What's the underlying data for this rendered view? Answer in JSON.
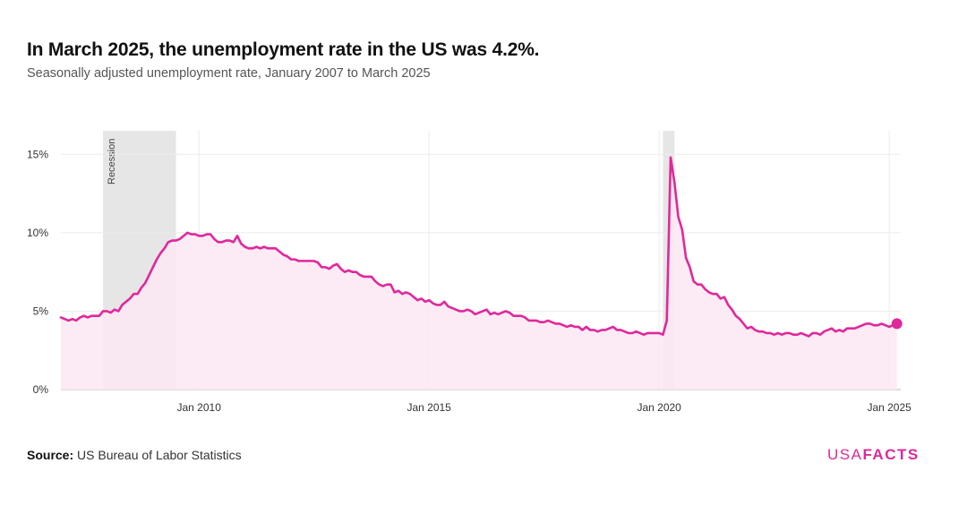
{
  "header": {
    "title": "In March 2025, the unemployment rate in the US was 4.2%.",
    "subtitle": "Seasonally adjusted unemployment rate, January 2007 to March 2025"
  },
  "footer": {
    "source_label": "Source:",
    "source_text": "US Bureau of Labor Statistics",
    "logo_light": "USA",
    "logo_bold": "FACTS"
  },
  "colors": {
    "line": "#e0289b",
    "area": "#fbe8f3",
    "band": "#e6e6e6",
    "grid": "#ebebeb"
  },
  "chart_data": {
    "type": "area",
    "title": "In March 2025, the unemployment rate in the US was 4.2%.",
    "ylabel": "",
    "xlabel": "",
    "ylim": [
      0,
      16.5
    ],
    "y_ticks": [
      0,
      5,
      10,
      15
    ],
    "y_tick_labels": [
      "0%",
      "5%",
      "10%",
      "15%"
    ],
    "x_ticks": [
      "2010-01",
      "2015-01",
      "2020-01",
      "2025-01"
    ],
    "x_tick_labels": [
      "Jan 2010",
      "Jan 2015",
      "Jan 2020",
      "Jan 2025"
    ],
    "grid": true,
    "recessions": [
      {
        "start": "2007-12",
        "end": "2009-06",
        "label": "Recession"
      },
      {
        "start": "2020-02",
        "end": "2020-04",
        "label": ""
      }
    ],
    "series": [
      {
        "units": "percent",
        "points": [
          [
            "2007-01",
            4.6
          ],
          [
            "2007-02",
            4.5
          ],
          [
            "2007-03",
            4.4
          ],
          [
            "2007-04",
            4.5
          ],
          [
            "2007-05",
            4.4
          ],
          [
            "2007-06",
            4.6
          ],
          [
            "2007-07",
            4.7
          ],
          [
            "2007-08",
            4.6
          ],
          [
            "2007-09",
            4.7
          ],
          [
            "2007-10",
            4.7
          ],
          [
            "2007-11",
            4.7
          ],
          [
            "2007-12",
            5.0
          ],
          [
            "2008-01",
            5.0
          ],
          [
            "2008-02",
            4.9
          ],
          [
            "2008-03",
            5.1
          ],
          [
            "2008-04",
            5.0
          ],
          [
            "2008-05",
            5.4
          ],
          [
            "2008-06",
            5.6
          ],
          [
            "2008-07",
            5.8
          ],
          [
            "2008-08",
            6.1
          ],
          [
            "2008-09",
            6.1
          ],
          [
            "2008-10",
            6.5
          ],
          [
            "2008-11",
            6.8
          ],
          [
            "2008-12",
            7.3
          ],
          [
            "2009-01",
            7.8
          ],
          [
            "2009-02",
            8.3
          ],
          [
            "2009-03",
            8.7
          ],
          [
            "2009-04",
            9.0
          ],
          [
            "2009-05",
            9.4
          ],
          [
            "2009-06",
            9.5
          ],
          [
            "2009-07",
            9.5
          ],
          [
            "2009-08",
            9.6
          ],
          [
            "2009-09",
            9.8
          ],
          [
            "2009-10",
            10.0
          ],
          [
            "2009-11",
            9.9
          ],
          [
            "2009-12",
            9.9
          ],
          [
            "2010-01",
            9.8
          ],
          [
            "2010-02",
            9.8
          ],
          [
            "2010-03",
            9.9
          ],
          [
            "2010-04",
            9.9
          ],
          [
            "2010-05",
            9.6
          ],
          [
            "2010-06",
            9.4
          ],
          [
            "2010-07",
            9.4
          ],
          [
            "2010-08",
            9.5
          ],
          [
            "2010-09",
            9.5
          ],
          [
            "2010-10",
            9.4
          ],
          [
            "2010-11",
            9.8
          ],
          [
            "2010-12",
            9.3
          ],
          [
            "2011-01",
            9.1
          ],
          [
            "2011-02",
            9.0
          ],
          [
            "2011-03",
            9.0
          ],
          [
            "2011-04",
            9.1
          ],
          [
            "2011-05",
            9.0
          ],
          [
            "2011-06",
            9.1
          ],
          [
            "2011-07",
            9.0
          ],
          [
            "2011-08",
            9.0
          ],
          [
            "2011-09",
            9.0
          ],
          [
            "2011-10",
            8.8
          ],
          [
            "2011-11",
            8.6
          ],
          [
            "2011-12",
            8.5
          ],
          [
            "2012-01",
            8.3
          ],
          [
            "2012-02",
            8.3
          ],
          [
            "2012-03",
            8.2
          ],
          [
            "2012-04",
            8.2
          ],
          [
            "2012-05",
            8.2
          ],
          [
            "2012-06",
            8.2
          ],
          [
            "2012-07",
            8.2
          ],
          [
            "2012-08",
            8.1
          ],
          [
            "2012-09",
            7.8
          ],
          [
            "2012-10",
            7.8
          ],
          [
            "2012-11",
            7.7
          ],
          [
            "2012-12",
            7.9
          ],
          [
            "2013-01",
            8.0
          ],
          [
            "2013-02",
            7.7
          ],
          [
            "2013-03",
            7.5
          ],
          [
            "2013-04",
            7.6
          ],
          [
            "2013-05",
            7.5
          ],
          [
            "2013-06",
            7.5
          ],
          [
            "2013-07",
            7.3
          ],
          [
            "2013-08",
            7.2
          ],
          [
            "2013-09",
            7.2
          ],
          [
            "2013-10",
            7.2
          ],
          [
            "2013-11",
            6.9
          ],
          [
            "2013-12",
            6.7
          ],
          [
            "2014-01",
            6.6
          ],
          [
            "2014-02",
            6.7
          ],
          [
            "2014-03",
            6.7
          ],
          [
            "2014-04",
            6.2
          ],
          [
            "2014-05",
            6.3
          ],
          [
            "2014-06",
            6.1
          ],
          [
            "2014-07",
            6.2
          ],
          [
            "2014-08",
            6.1
          ],
          [
            "2014-09",
            5.9
          ],
          [
            "2014-10",
            5.7
          ],
          [
            "2014-11",
            5.8
          ],
          [
            "2014-12",
            5.6
          ],
          [
            "2015-01",
            5.7
          ],
          [
            "2015-02",
            5.5
          ],
          [
            "2015-03",
            5.4
          ],
          [
            "2015-04",
            5.4
          ],
          [
            "2015-05",
            5.6
          ],
          [
            "2015-06",
            5.3
          ],
          [
            "2015-07",
            5.2
          ],
          [
            "2015-08",
            5.1
          ],
          [
            "2015-09",
            5.0
          ],
          [
            "2015-10",
            5.0
          ],
          [
            "2015-11",
            5.1
          ],
          [
            "2015-12",
            5.0
          ],
          [
            "2016-01",
            4.8
          ],
          [
            "2016-02",
            4.9
          ],
          [
            "2016-03",
            5.0
          ],
          [
            "2016-04",
            5.1
          ],
          [
            "2016-05",
            4.8
          ],
          [
            "2016-06",
            4.9
          ],
          [
            "2016-07",
            4.8
          ],
          [
            "2016-08",
            4.9
          ],
          [
            "2016-09",
            5.0
          ],
          [
            "2016-10",
            4.9
          ],
          [
            "2016-11",
            4.7
          ],
          [
            "2016-12",
            4.7
          ],
          [
            "2017-01",
            4.7
          ],
          [
            "2017-02",
            4.6
          ],
          [
            "2017-03",
            4.4
          ],
          [
            "2017-04",
            4.4
          ],
          [
            "2017-05",
            4.4
          ],
          [
            "2017-06",
            4.3
          ],
          [
            "2017-07",
            4.3
          ],
          [
            "2017-08",
            4.4
          ],
          [
            "2017-09",
            4.3
          ],
          [
            "2017-10",
            4.2
          ],
          [
            "2017-11",
            4.2
          ],
          [
            "2017-12",
            4.1
          ],
          [
            "2018-01",
            4.0
          ],
          [
            "2018-02",
            4.1
          ],
          [
            "2018-03",
            4.0
          ],
          [
            "2018-04",
            4.0
          ],
          [
            "2018-05",
            3.8
          ],
          [
            "2018-06",
            4.0
          ],
          [
            "2018-07",
            3.8
          ],
          [
            "2018-08",
            3.8
          ],
          [
            "2018-09",
            3.7
          ],
          [
            "2018-10",
            3.8
          ],
          [
            "2018-11",
            3.8
          ],
          [
            "2018-12",
            3.9
          ],
          [
            "2019-01",
            4.0
          ],
          [
            "2019-02",
            3.8
          ],
          [
            "2019-03",
            3.8
          ],
          [
            "2019-04",
            3.7
          ],
          [
            "2019-05",
            3.6
          ],
          [
            "2019-06",
            3.6
          ],
          [
            "2019-07",
            3.7
          ],
          [
            "2019-08",
            3.6
          ],
          [
            "2019-09",
            3.5
          ],
          [
            "2019-10",
            3.6
          ],
          [
            "2019-11",
            3.6
          ],
          [
            "2019-12",
            3.6
          ],
          [
            "2020-01",
            3.6
          ],
          [
            "2020-02",
            3.5
          ],
          [
            "2020-03",
            4.4
          ],
          [
            "2020-04",
            14.8
          ],
          [
            "2020-05",
            13.2
          ],
          [
            "2020-06",
            11.0
          ],
          [
            "2020-07",
            10.2
          ],
          [
            "2020-08",
            8.4
          ],
          [
            "2020-09",
            7.8
          ],
          [
            "2020-10",
            6.9
          ],
          [
            "2020-11",
            6.7
          ],
          [
            "2020-12",
            6.7
          ],
          [
            "2021-01",
            6.4
          ],
          [
            "2021-02",
            6.2
          ],
          [
            "2021-03",
            6.1
          ],
          [
            "2021-04",
            6.1
          ],
          [
            "2021-05",
            5.8
          ],
          [
            "2021-06",
            5.9
          ],
          [
            "2021-07",
            5.4
          ],
          [
            "2021-08",
            5.1
          ],
          [
            "2021-09",
            4.7
          ],
          [
            "2021-10",
            4.5
          ],
          [
            "2021-11",
            4.2
          ],
          [
            "2021-12",
            3.9
          ],
          [
            "2022-01",
            4.0
          ],
          [
            "2022-02",
            3.8
          ],
          [
            "2022-03",
            3.7
          ],
          [
            "2022-04",
            3.7
          ],
          [
            "2022-05",
            3.6
          ],
          [
            "2022-06",
            3.6
          ],
          [
            "2022-07",
            3.5
          ],
          [
            "2022-08",
            3.6
          ],
          [
            "2022-09",
            3.5
          ],
          [
            "2022-10",
            3.6
          ],
          [
            "2022-11",
            3.6
          ],
          [
            "2022-12",
            3.5
          ],
          [
            "2023-01",
            3.5
          ],
          [
            "2023-02",
            3.6
          ],
          [
            "2023-03",
            3.5
          ],
          [
            "2023-04",
            3.4
          ],
          [
            "2023-05",
            3.6
          ],
          [
            "2023-06",
            3.6
          ],
          [
            "2023-07",
            3.5
          ],
          [
            "2023-08",
            3.7
          ],
          [
            "2023-09",
            3.8
          ],
          [
            "2023-10",
            3.9
          ],
          [
            "2023-11",
            3.7
          ],
          [
            "2023-12",
            3.8
          ],
          [
            "2024-01",
            3.7
          ],
          [
            "2024-02",
            3.9
          ],
          [
            "2024-03",
            3.9
          ],
          [
            "2024-04",
            3.9
          ],
          [
            "2024-05",
            4.0
          ],
          [
            "2024-06",
            4.1
          ],
          [
            "2024-07",
            4.2
          ],
          [
            "2024-08",
            4.2
          ],
          [
            "2024-09",
            4.1
          ],
          [
            "2024-10",
            4.1
          ],
          [
            "2024-11",
            4.2
          ],
          [
            "2024-12",
            4.1
          ],
          [
            "2025-01",
            4.0
          ],
          [
            "2025-02",
            4.1
          ],
          [
            "2025-03",
            4.2
          ]
        ]
      }
    ],
    "highlight_point": [
      "2025-03",
      4.2
    ]
  }
}
